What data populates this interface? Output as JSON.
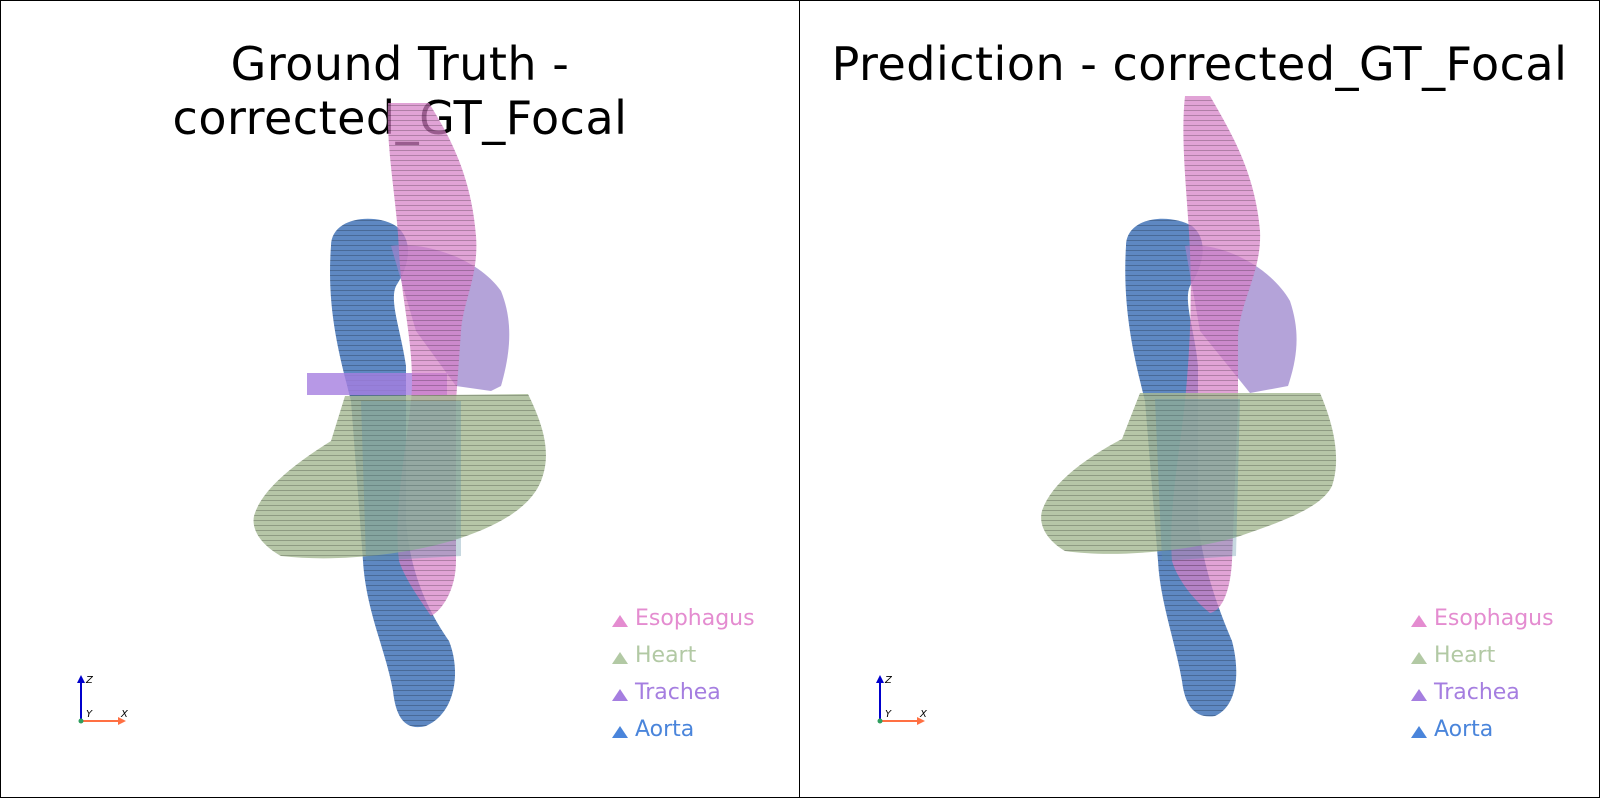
{
  "panels": [
    {
      "title": "Ground Truth - corrected_GT_Focal",
      "legend": [
        {
          "label": "Esophagus",
          "color": "#e48cd0"
        },
        {
          "label": "Heart",
          "color": "#b2c9a4"
        },
        {
          "label": "Trachea",
          "color": "#a57ee0"
        },
        {
          "label": "Aorta",
          "color": "#4a85db"
        }
      ]
    },
    {
      "title": "Prediction - corrected_GT_Focal",
      "legend": [
        {
          "label": "Esophagus",
          "color": "#e48cd0"
        },
        {
          "label": "Heart",
          "color": "#b2c9a4"
        },
        {
          "label": "Trachea",
          "color": "#a57ee0"
        },
        {
          "label": "Aorta",
          "color": "#4a85db"
        }
      ]
    }
  ],
  "axes": {
    "x": "X",
    "y": "Y",
    "z": "Z"
  },
  "colors": {
    "esophagus": "#d67fc6",
    "heart": "#a6b994",
    "trachea": "#9b84cc",
    "aorta": "#4d7bbb"
  }
}
